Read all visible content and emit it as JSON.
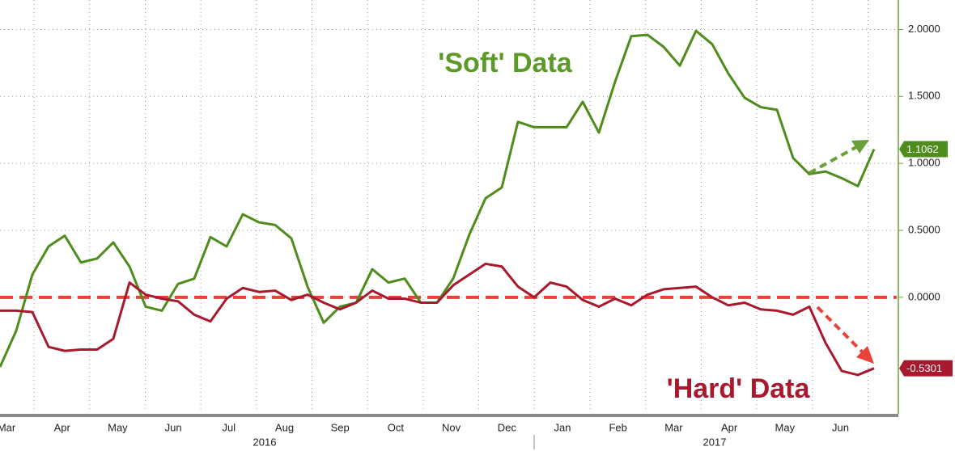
{
  "chart_data": {
    "type": "line",
    "annotations": [
      "'Soft' Data",
      "'Hard' Data"
    ],
    "x_labels": [
      "Mar",
      "Apr",
      "May",
      "Jun",
      "Jul",
      "Aug",
      "Sep",
      "Oct",
      "Nov",
      "Dec",
      "Jan",
      "Feb",
      "Mar",
      "Apr",
      "May",
      "Jun"
    ],
    "years": [
      "2016",
      "2017"
    ],
    "ylim": [
      -0.87,
      2.22
    ],
    "yticks": [
      {
        "value": 0,
        "label": "0.0000"
      },
      {
        "value": 0.5,
        "label": "0.5000"
      },
      {
        "value": 1,
        "label": "1.0000"
      },
      {
        "value": 1.5,
        "label": "1.5000"
      },
      {
        "value": 2,
        "label": "2.0000"
      }
    ],
    "grid": true,
    "zero_line": {
      "value": 0,
      "color": "#e8423a"
    },
    "series": [
      {
        "name": "'Soft' Data",
        "color": "#4e8c1c",
        "values": [
          -0.52,
          -0.25,
          0.17,
          0.38,
          0.46,
          0.26,
          0.29,
          0.41,
          0.23,
          -0.07,
          -0.1,
          0.1,
          0.14,
          0.45,
          0.38,
          0.62,
          0.56,
          0.54,
          0.44,
          0.08,
          -0.19,
          -0.07,
          -0.04,
          0.21,
          0.11,
          0.14,
          -0.04,
          -0.04,
          0.14,
          0.47,
          0.74,
          0.82,
          1.31,
          1.27,
          1.27,
          1.27,
          1.46,
          1.23,
          1.61,
          1.95,
          1.96,
          1.87,
          1.73,
          1.99,
          1.89,
          1.67,
          1.49,
          1.42,
          1.4,
          1.04,
          0.92,
          0.94,
          0.89,
          0.83,
          1.1062
        ]
      },
      {
        "name": "'Hard' Data",
        "color": "#a8192e",
        "values": [
          -0.1,
          -0.1,
          -0.11,
          -0.37,
          -0.4,
          -0.39,
          -0.39,
          -0.31,
          0.11,
          0.02,
          -0.01,
          -0.03,
          -0.13,
          -0.18,
          -0.01,
          0.07,
          0.04,
          0.05,
          -0.02,
          0.02,
          -0.04,
          -0.09,
          -0.04,
          0.05,
          -0.01,
          -0.01,
          -0.04,
          -0.04,
          0.09,
          0.17,
          0.25,
          0.23,
          0.08,
          0.0,
          0.11,
          0.08,
          -0.02,
          -0.07,
          -0.01,
          -0.06,
          0.02,
          0.06,
          0.07,
          0.08,
          0.0,
          -0.06,
          -0.04,
          -0.09,
          -0.1,
          -0.13,
          -0.07,
          -0.34,
          -0.55,
          -0.58,
          -0.5301
        ]
      }
    ]
  }
}
